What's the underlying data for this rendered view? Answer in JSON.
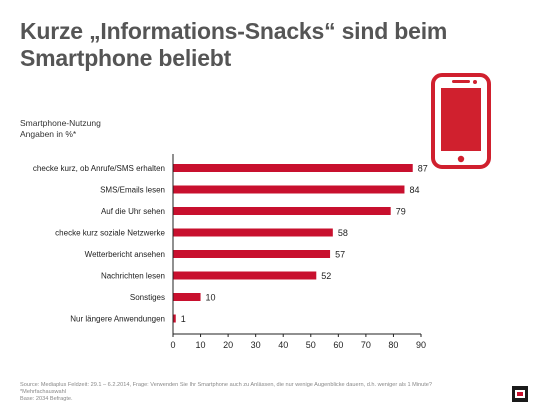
{
  "header": {
    "title_line1": "Kurze „Informations-Snacks“ sind beim",
    "title_line2": "Smartphone beliebt"
  },
  "subhead": {
    "line1": "Smartphone-Nutzung",
    "line2": "Angaben in %*"
  },
  "icons": {
    "phone": "smartphone-icon",
    "logo": "brand-logo-icon"
  },
  "colors": {
    "bar": "#c8102e",
    "phone": "#d0202e",
    "text": "#4a4a4a"
  },
  "chart_data": {
    "type": "bar",
    "orientation": "horizontal",
    "categories": [
      "checke kurz, ob Anrufe/SMS erhalten",
      "SMS/Emails lesen",
      "Auf die Uhr sehen",
      "checke kurz soziale Netzwerke",
      "Wetterbericht ansehen",
      "Nachrichten lesen",
      "Sonstiges",
      "Nur längere Anwendungen"
    ],
    "values": [
      87,
      84,
      79,
      58,
      57,
      52,
      10,
      1
    ],
    "xlim": [
      0,
      90
    ],
    "xticks": [
      0,
      10,
      20,
      30,
      40,
      50,
      60,
      70,
      80,
      90
    ],
    "grid": false,
    "legend": "none"
  },
  "footer": {
    "line1": "Source: Mediaplus Feldzeit: 29.1 – 6.2.2014, Frage: Verwenden Sie Ihr Smartphone auch zu Anlässen, die nur wenige Augenblicke dauern, d.h. weniger als 1 Minute?",
    "line2": "*Mehrfachauswahl",
    "line3": "Base: 2034 Befragte."
  }
}
